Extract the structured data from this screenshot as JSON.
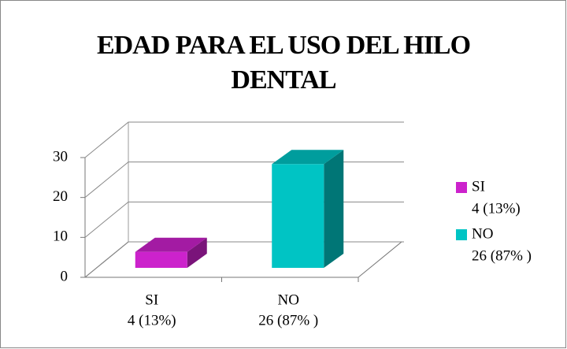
{
  "chart_data": {
    "type": "bar3d",
    "title": "EDAD PARA EL USO DEL HILO DENTAL",
    "categories": [
      "SI",
      "NO"
    ],
    "values": [
      4,
      26
    ],
    "value_labels": [
      "4 (13%)",
      "26 (87% )"
    ],
    "colors": [
      "#cc22cc",
      "#00c4c4"
    ],
    "ylim": [
      0,
      30
    ],
    "yticks": [
      0,
      10,
      20,
      30
    ],
    "grid": true,
    "legend": "right"
  }
}
